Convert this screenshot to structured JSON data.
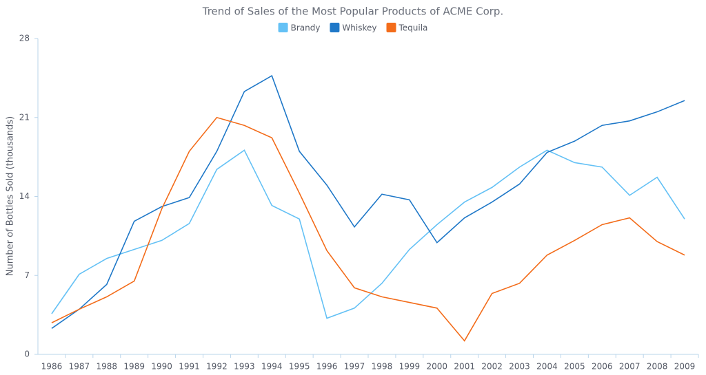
{
  "chart_data": {
    "type": "line",
    "title": "Trend of Sales of the Most Popular Products of ACME Corp.",
    "y_label": "Number of Bottles Sold (thousands)",
    "categories": [
      "1986",
      "1987",
      "1988",
      "1989",
      "1990",
      "1991",
      "1992",
      "1993",
      "1994",
      "1995",
      "1996",
      "1997",
      "1998",
      "1999",
      "2000",
      "2001",
      "2002",
      "2003",
      "2004",
      "2005",
      "2006",
      "2007",
      "2008",
      "2009"
    ],
    "series": [
      {
        "name": "Brandy",
        "color": "#64c1f5",
        "values": [
          3.6,
          7.1,
          8.5,
          9.3,
          10.1,
          11.6,
          16.4,
          18.1,
          13.2,
          12.0,
          3.2,
          4.1,
          6.3,
          9.3,
          11.5,
          13.5,
          14.8,
          16.6,
          18.1,
          17.0,
          16.6,
          14.1,
          15.7,
          12.0
        ]
      },
      {
        "name": "Whiskey",
        "color": "#1f78c8",
        "values": [
          2.3,
          4.0,
          6.2,
          11.8,
          13.1,
          13.9,
          18.0,
          23.3,
          24.7,
          18.0,
          15.0,
          11.3,
          14.2,
          13.7,
          9.9,
          12.1,
          13.5,
          15.1,
          17.9,
          18.9,
          20.3,
          20.7,
          21.5,
          22.5
        ]
      },
      {
        "name": "Tequila",
        "color": "#f36c1a",
        "values": [
          2.8,
          4.0,
          5.1,
          6.5,
          12.9,
          18.0,
          21.0,
          20.3,
          19.2,
          14.3,
          9.2,
          5.9,
          5.1,
          4.6,
          4.1,
          1.2,
          5.4,
          6.3,
          8.8,
          10.1,
          11.5,
          12.1,
          10.0,
          8.8
        ]
      }
    ],
    "ylim": [
      0,
      28
    ],
    "yticks": [
      0,
      7,
      14,
      21,
      28
    ],
    "grid": false
  }
}
